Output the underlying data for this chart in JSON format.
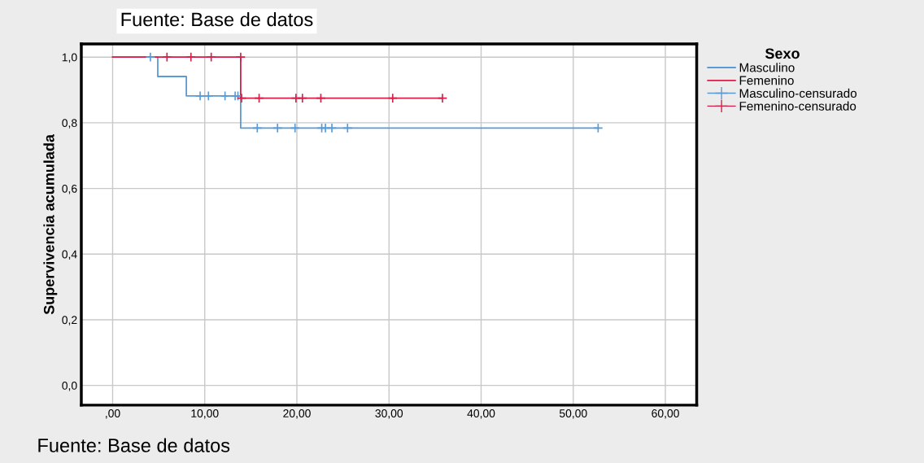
{
  "chart_data": {
    "type": "step",
    "ylabel": "Supervivencia acumulada",
    "legend_title": "Sexo",
    "annotations": [
      "Fuente: Base de datos",
      "Fuente: Base de datos"
    ],
    "series": [
      {
        "name": "Masculino",
        "color": "#5b9bd5",
        "marker": "none",
        "x": [
          0,
          4.9,
          8.0,
          13.9,
          52.7
        ],
        "values": [
          1.0,
          0.941,
          0.882,
          0.784,
          0.784
        ]
      },
      {
        "name": "Femenino",
        "color": "#d6204a",
        "marker": "none",
        "x": [
          0,
          13.9,
          35.8
        ],
        "values": [
          1.0,
          0.875,
          0.875
        ]
      },
      {
        "name": "Masculino-censurado",
        "type": "scatter",
        "color": "#5b9bd5",
        "marker": "cross",
        "x": [
          4.1,
          9.5,
          10.4,
          12.2,
          13.3,
          13.6,
          15.7,
          17.9,
          19.8,
          22.7,
          23.1,
          23.8,
          25.5,
          52.7
        ],
        "values": [
          1.0,
          0.882,
          0.882,
          0.882,
          0.882,
          0.882,
          0.784,
          0.784,
          0.784,
          0.784,
          0.784,
          0.784,
          0.784,
          0.784
        ]
      },
      {
        "name": "Femenino-censurado",
        "type": "scatter",
        "color": "#d6204a",
        "marker": "cross",
        "x": [
          5.9,
          8.5,
          10.7,
          13.9,
          14.0,
          15.9,
          19.9,
          20.6,
          22.6,
          30.4,
          35.8
        ],
        "values": [
          1.0,
          1.0,
          1.0,
          1.0,
          0.875,
          0.875,
          0.875,
          0.875,
          0.875,
          0.875,
          0.875
        ]
      }
    ],
    "xlim": [
      -3.4,
      63.4
    ],
    "xticks": [
      {
        "value": 0,
        "label": ",00"
      },
      {
        "value": 10,
        "label": "10,00"
      },
      {
        "value": 20,
        "label": "20,00"
      },
      {
        "value": 30,
        "label": "30,00"
      },
      {
        "value": 40,
        "label": "40,00"
      },
      {
        "value": 50,
        "label": "50,00"
      },
      {
        "value": 60,
        "label": "60,00"
      }
    ],
    "ylim": [
      -0.06,
      1.04
    ],
    "yticks": [
      {
        "value": 0,
        "label": "0,0"
      },
      {
        "value": 0.2,
        "label": "0,2"
      },
      {
        "value": 0.4,
        "label": "0,4"
      },
      {
        "value": 0.6,
        "label": "0,6"
      },
      {
        "value": 0.8,
        "label": "0,8"
      },
      {
        "value": 1.0,
        "label": "1,0"
      }
    ],
    "grid": true,
    "legend": "top right"
  }
}
